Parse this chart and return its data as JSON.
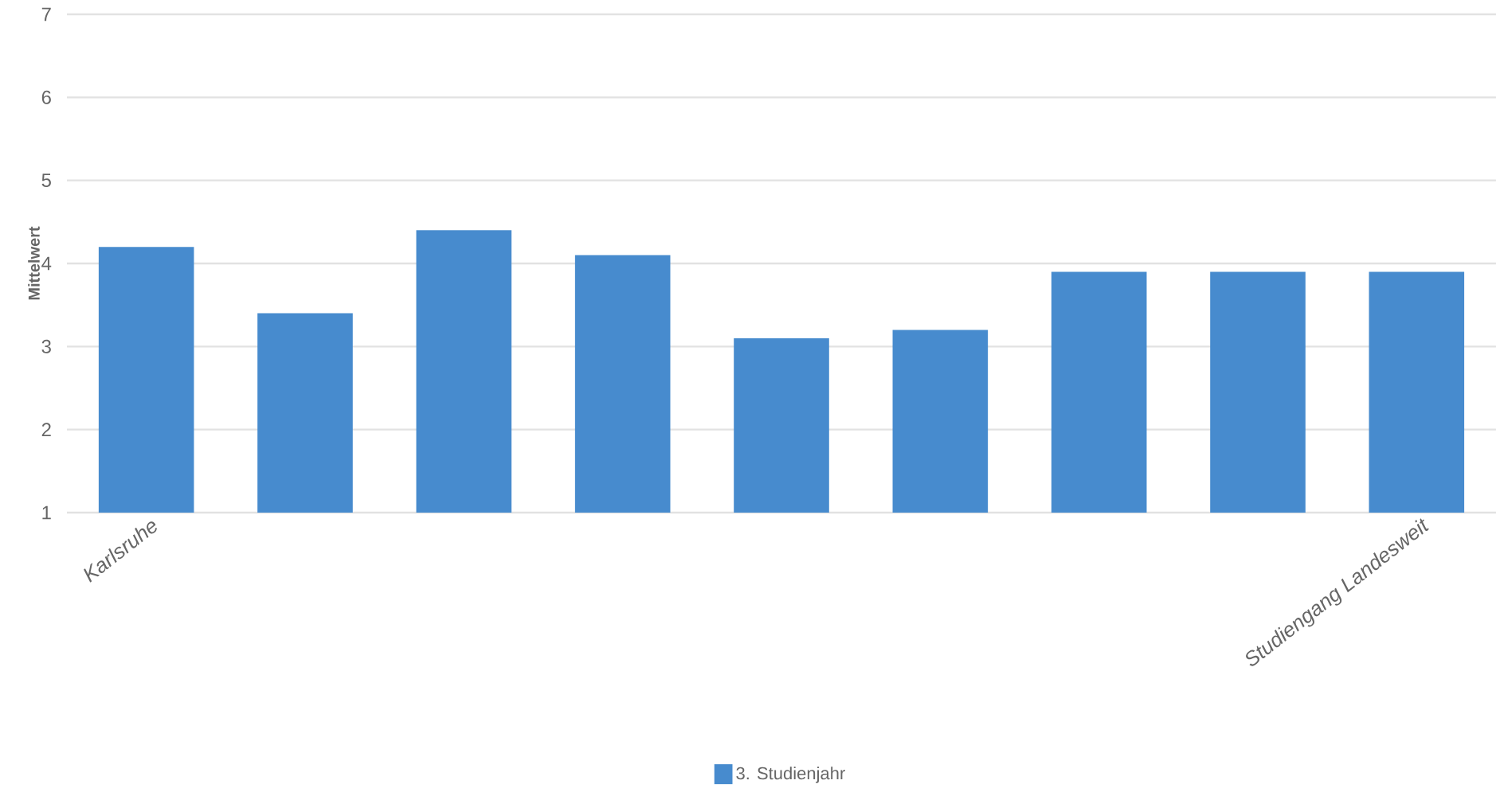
{
  "chart_data": {
    "type": "bar",
    "ylabel": "Mittelwert",
    "categories": [
      "Karlsruhe",
      null,
      null,
      null,
      null,
      null,
      null,
      null,
      "Studiengang Landesweit"
    ],
    "series": [
      {
        "name": "3. Studienjahr",
        "color": "#478bce",
        "values": [
          4.2,
          3.4,
          4.4,
          4.1,
          3.1,
          3.2,
          3.9,
          3.9,
          3.9
        ]
      }
    ],
    "ylim": [
      1,
      7
    ],
    "yticks": [
      1,
      2,
      3,
      4,
      5,
      6,
      7
    ],
    "grid": "y",
    "legend": "bottom"
  }
}
